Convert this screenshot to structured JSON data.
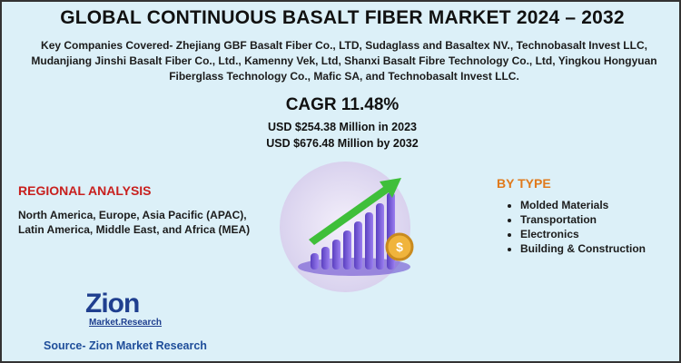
{
  "header": {
    "title": "GLOBAL CONTINUOUS BASALT FIBER MARKET 2024 – 2032",
    "companies": "Key Companies Covered- Zhejiang GBF Basalt Fiber Co., LTD, Sudaglass and Basaltex NV., Technobasalt Invest LLC, Mudanjiang Jinshi Basalt Fiber Co., Ltd., Kamenny Vek, Ltd, Shanxi Basalt Fibre Technology Co., Ltd, Yingkou Hongyuan Fiberglass Technology Co., Mafic SA, and Technobasalt Invest LLC."
  },
  "summary": {
    "cagr": "CAGR 11.48%",
    "value_2023": "USD $254.38 Million in 2023",
    "value_2032": "USD $676.48 Million by 2032"
  },
  "regional": {
    "heading": "REGIONAL ANALYSIS",
    "text": "North America, Europe, Asia Pacific (APAC), Latin America, Middle East, and Africa (MEA)"
  },
  "by_type": {
    "heading": "BY TYPE",
    "items": [
      "Molded Materials",
      "Transportation",
      "Electronics",
      "Building & Construction"
    ]
  },
  "logo": {
    "name": "Zion",
    "tagline": "Market.Research"
  },
  "source": "Source- Zion Market Research"
}
